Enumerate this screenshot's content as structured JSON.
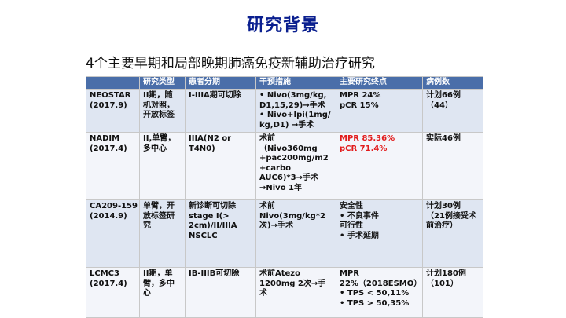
{
  "slide": {
    "title": "研究背景",
    "subtitle": "4个主要早期和局部晚期肺癌免疫新辅助治疗研究"
  },
  "table": {
    "headers": [
      "",
      "研究类型",
      "患者分期",
      "干预措施",
      "主要研究终点",
      "病例数"
    ],
    "rows": [
      {
        "study": [
          "NEOSTAR",
          "(2017.9)"
        ],
        "design": [
          "II期，随",
          "机对照，",
          "开放标签"
        ],
        "stage": [
          "I-IIIA期可切除"
        ],
        "intervention": [
          "• Nivo(3mg/kg,",
          "D1,15,29)→手术",
          "• Nivo+Ipi(1mg/",
          "kg,D1) →手术"
        ],
        "endpoint": [
          "MPR 24%",
          "pCR  15%"
        ],
        "cases": [
          "计划66例",
          "（44）"
        ]
      },
      {
        "study": [
          "NADIM",
          "(2017.4)"
        ],
        "design": [
          "II,单臂，",
          "多中心"
        ],
        "stage": [
          "IIIA(N2 or",
          "T4N0)"
        ],
        "intervention": [
          "术前",
          "（Nivo360mg",
          "+pac200mg/m2",
          "+carbo",
          "AUC6)*3→手术",
          "→Nivo 1年"
        ],
        "endpoint": [
          "MPR  85.36%",
          "pCR  71.4%"
        ],
        "cases": [
          "实际46例"
        ]
      },
      {
        "study": [
          "CA209-159",
          "(2014.9)"
        ],
        "design": [
          "单臂，开",
          "放标签研",
          "究"
        ],
        "stage": [
          "新诊断可切除",
          "stage I(>",
          "2cm)/II/IIIA",
          "NSCLC"
        ],
        "intervention": [
          "术前",
          "Nivo(3mg/kg*2",
          "次)→手术"
        ],
        "endpoint": [
          "安全性",
          "• 不良事件",
          "可行性",
          "• 手术延期"
        ],
        "cases": [
          "计划30例",
          "（21例接受术",
          "前治疗）"
        ]
      },
      {
        "study": [
          "LCMC3",
          "(2017.4)"
        ],
        "design": [
          "II期，单",
          "臂，多中",
          "心"
        ],
        "stage": [
          "IB-IIIB可切除"
        ],
        "intervention": [
          "术前Atezo",
          "1200mg 2次→手",
          "术"
        ],
        "endpoint": [
          "MPR",
          "22%（2018ESMO）",
          "• TPS < 50,11%",
          "• TPS > 50,35%"
        ],
        "cases": [
          "计划180例",
          "（101）"
        ]
      }
    ]
  },
  "colors": {
    "title": "#0a1f8f",
    "header_bg": "#4a6ea9",
    "row_even_bg": "#dfe6f2",
    "row_odd_bg": "#f3f5fa",
    "highlight": "#e21b1b"
  }
}
